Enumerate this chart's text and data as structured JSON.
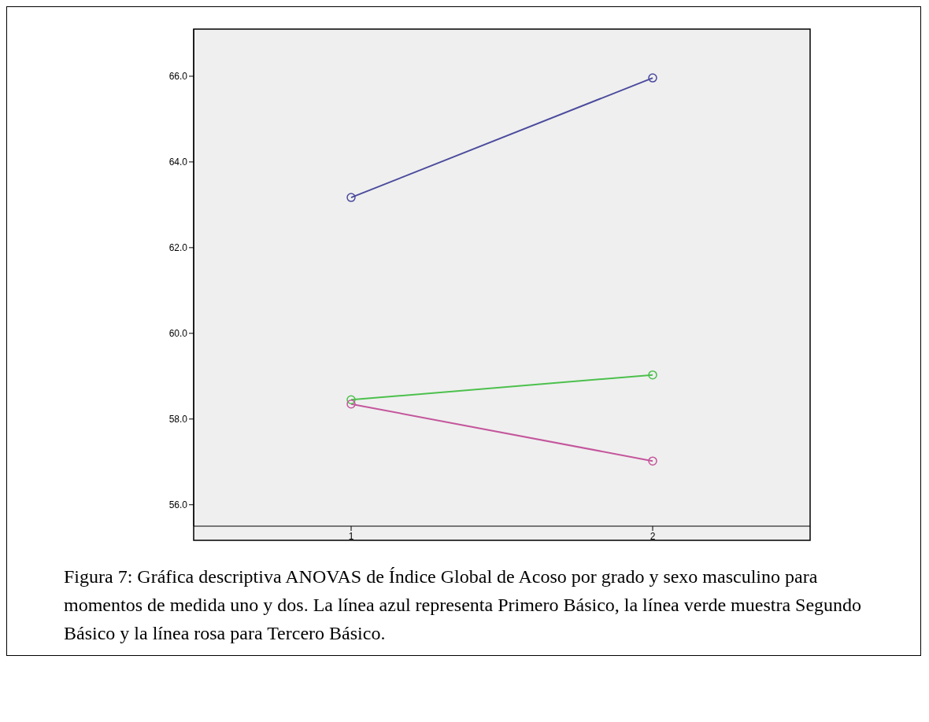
{
  "chart_data": {
    "type": "line",
    "categories": [
      "1",
      "2"
    ],
    "series": [
      {
        "color": "#4b4b9e",
        "values": [
          63.17,
          65.96
        ]
      },
      {
        "color": "#4cc04c",
        "values": [
          58.45,
          59.03
        ]
      },
      {
        "color": "#c4569c",
        "values": [
          58.35,
          57.02
        ]
      }
    ],
    "ylim": [
      55.5,
      67.1
    ],
    "yticks": [
      {
        "value": 56,
        "label": "56.0"
      },
      {
        "value": 58,
        "label": "58.0"
      },
      {
        "value": 60,
        "label": "60.0"
      },
      {
        "value": 62,
        "label": "62.0"
      },
      {
        "value": 64,
        "label": "64.0"
      },
      {
        "value": 66,
        "label": "66.0"
      }
    ],
    "marker": "circle",
    "grid": false,
    "legend": false,
    "annotations": [
      "Figura 7: Gráfica descriptiva ANOVAS de Índice Global de Acoso por grado y sexo masculino para momentos de medida uno y dos. La línea azul representa Primero Básico, la línea verde muestra Segundo Básico y la línea rosa para Tercero Básico."
    ]
  }
}
